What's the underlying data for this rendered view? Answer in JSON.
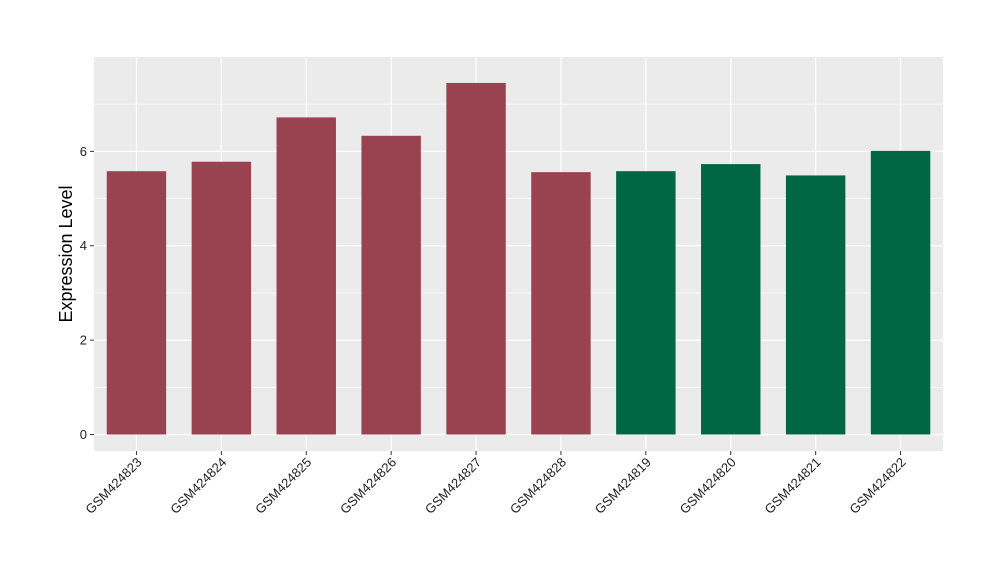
{
  "chart_data": {
    "type": "bar",
    "categories": [
      "GSM424823",
      "GSM424824",
      "GSM424825",
      "GSM424826",
      "GSM424827",
      "GSM424828",
      "GSM424819",
      "GSM424820",
      "GSM424821",
      "GSM424822"
    ],
    "values": [
      5.58,
      5.78,
      6.72,
      6.33,
      7.45,
      5.56,
      5.58,
      5.73,
      5.49,
      6.01
    ],
    "bar_colors": [
      "#9a4350",
      "#9a4350",
      "#9a4350",
      "#9a4350",
      "#9a4350",
      "#9a4350",
      "#006644",
      "#006644",
      "#006644",
      "#006644"
    ],
    "title": "",
    "xlabel": "",
    "ylabel": "Expression Level",
    "ylim": [
      -0.35,
      8.0
    ],
    "yticks": [
      0,
      2,
      4,
      6
    ],
    "grid": true,
    "legend": "none",
    "colors": {
      "panel_background": "#ebebeb",
      "gridline": "#ffffff",
      "group_1": "#9a4350",
      "group_2": "#006644"
    }
  }
}
